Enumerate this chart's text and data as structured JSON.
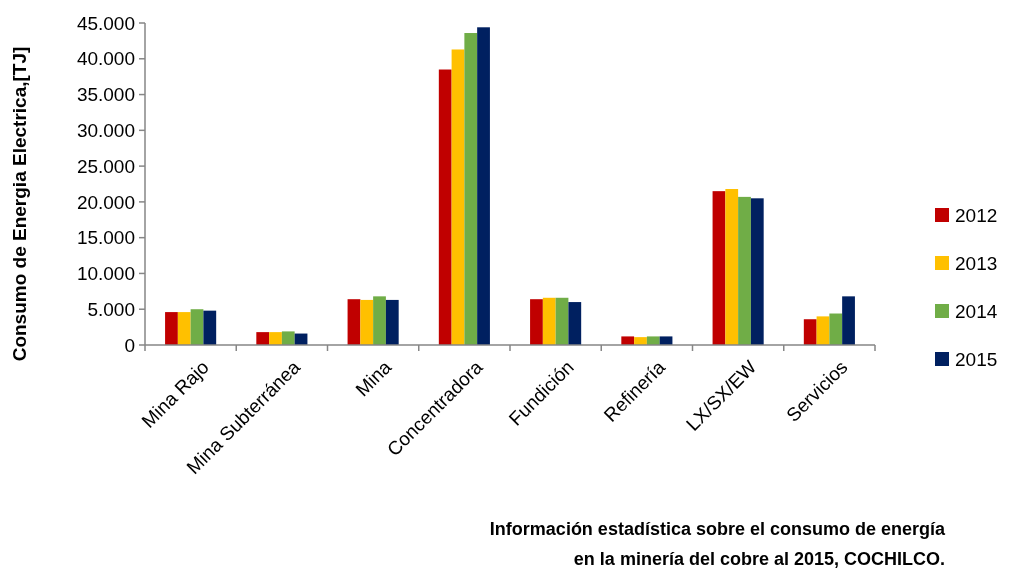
{
  "chart_data": {
    "type": "bar",
    "ylabel": "Consumo de Energia Electrica,[TJ]",
    "categories": [
      "Mina Rajo",
      "Mina Subterránea",
      "Mina",
      "Concentradora",
      "Fundición",
      "Refinería",
      "LX/SX/EW",
      "Servicios"
    ],
    "series": [
      {
        "name": "2012",
        "color": "#c00000",
        "values": [
          4600,
          1800,
          6400,
          38500,
          6400,
          1200,
          21500,
          3600
        ]
      },
      {
        "name": "2013",
        "color": "#ffc000",
        "values": [
          4600,
          1800,
          6300,
          41300,
          6600,
          1100,
          21800,
          4000
        ]
      },
      {
        "name": "2014",
        "color": "#70ad47",
        "values": [
          5000,
          1900,
          6800,
          43600,
          6600,
          1200,
          20700,
          4400
        ]
      },
      {
        "name": "2015",
        "color": "#002060",
        "values": [
          4800,
          1600,
          6300,
          44400,
          6000,
          1200,
          20500,
          6800
        ]
      }
    ],
    "ylim": [
      0,
      45000
    ],
    "yticks": [
      {
        "value": 0,
        "label": "0"
      },
      {
        "value": 5000,
        "label": "5.000"
      },
      {
        "value": 10000,
        "label": "10.000"
      },
      {
        "value": 15000,
        "label": "15.000"
      },
      {
        "value": 20000,
        "label": "20.000"
      },
      {
        "value": 25000,
        "label": "25.000"
      },
      {
        "value": 30000,
        "label": "30.000"
      },
      {
        "value": 35000,
        "label": "35.000"
      },
      {
        "value": 40000,
        "label": "40.000"
      },
      {
        "value": 45000,
        "label": "45.000"
      }
    ],
    "legend": "right",
    "grid": false,
    "annotations": [
      "Información estadística sobre el consumo de energía",
      "en la minería del cobre al 2015, COCHILCO."
    ]
  }
}
